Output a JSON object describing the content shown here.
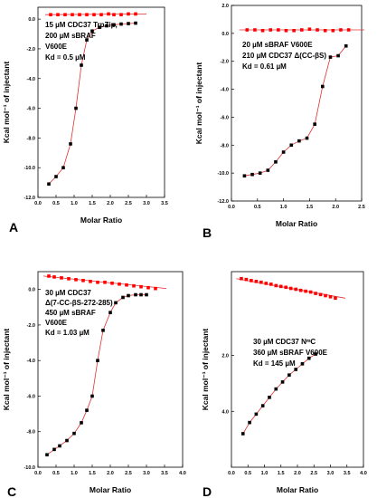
{
  "chart_data": [
    {
      "type": "scatter",
      "panel_label": "A",
      "xlabel": "Molar Ratio",
      "ylabel": "Kcal mol⁻¹ of injectant",
      "xlim": [
        0,
        3.5
      ],
      "ylim": [
        -12.0,
        0.8
      ],
      "x_ticks": [
        "0.0",
        "0.5",
        "1.0",
        "1.5",
        "2.0",
        "2.5",
        "3.0",
        "3.5"
      ],
      "y_ticks": [
        "0.0",
        "-2.0",
        "-4.0",
        "-6.0",
        "-8.0",
        "-10.0",
        "-12.0"
      ],
      "annotation": [
        "15 µM CDC37 TrpZip,",
        "200 µM sBRAF",
        "V600E",
        "Kd = 0.5 µM"
      ],
      "colors": {
        "control": "#ff0000",
        "titration": "#000000",
        "fit": "#e03030"
      },
      "series": [
        {
          "values_x": [
            0.3,
            0.5,
            0.7,
            0.9,
            1.05,
            1.2,
            1.35,
            1.5,
            1.7,
            1.9,
            2.1,
            2.3,
            2.5,
            2.7
          ],
          "values_y": [
            -11.1,
            -10.6,
            -10.0,
            -8.4,
            -6.0,
            -3.1,
            -1.4,
            -0.8,
            -0.55,
            -0.45,
            -0.38,
            -0.33,
            -0.3,
            -0.27
          ]
        },
        {
          "values_x": [
            0.35,
            0.55,
            0.75,
            0.95,
            1.15,
            1.35,
            1.55,
            1.75,
            1.95,
            2.1,
            2.3,
            2.5,
            2.7
          ],
          "values_y": [
            0.3,
            0.3,
            0.3,
            0.3,
            0.3,
            0.3,
            0.3,
            0.3,
            0.35,
            0.3,
            0.3,
            0.35,
            0.35
          ]
        }
      ]
    },
    {
      "type": "scatter",
      "panel_label": "B",
      "xlabel": "Molar Ratio",
      "ylabel": "Kcal mol⁻¹ of injectant",
      "xlim": [
        0,
        2.5
      ],
      "ylim": [
        -12.0,
        2.0
      ],
      "x_ticks": [
        "0.0",
        "0.5",
        "1.0",
        "1.5",
        "2.0",
        "2.5"
      ],
      "y_ticks": [
        "2.0",
        "0.0",
        "-2.0",
        "-4.0",
        "-6.0",
        "-8.0",
        "-10.0",
        "-12.0"
      ],
      "annotation": [
        "20 µM sBRAF V600E",
        "210 µM CDC37 Δ(CC-βS)",
        "Kd = 0.61 µM"
      ],
      "colors": {
        "control": "#ff0000",
        "titration": "#000000",
        "fit": "#e03030"
      },
      "series": [
        {
          "values_x": [
            0.25,
            0.4,
            0.55,
            0.7,
            0.85,
            1.0,
            1.15,
            1.3,
            1.45,
            1.6,
            1.75,
            1.9,
            2.05,
            2.2
          ],
          "values_y": [
            -10.2,
            -10.1,
            -10.0,
            -9.8,
            -9.2,
            -8.5,
            -8.0,
            -7.7,
            -7.5,
            -6.5,
            -3.8,
            -1.7,
            -1.6,
            -0.9
          ]
        },
        {
          "values_x": [
            0.3,
            0.45,
            0.6,
            0.75,
            0.9,
            1.05,
            1.2,
            1.35,
            1.5,
            1.65,
            1.8,
            1.95,
            2.1,
            2.25
          ],
          "values_y": [
            0.25,
            0.25,
            0.2,
            0.25,
            0.25,
            0.2,
            0.2,
            0.25,
            0.3,
            0.25,
            0.2,
            0.2,
            0.25,
            0.25
          ]
        }
      ]
    },
    {
      "type": "scatter",
      "panel_label": "C",
      "xlabel": "Molar Ratio",
      "ylabel": "Kcal mol⁻¹ of injectant",
      "xlim": [
        0,
        4.0
      ],
      "ylim": [
        -10.0,
        1.0
      ],
      "x_ticks": [
        "0.0",
        "0.5",
        "1.0",
        "1.5",
        "2.0",
        "2.5",
        "3.0",
        "3.5",
        "4.0"
      ],
      "y_ticks": [
        "0.0",
        "-2.0",
        "-4.0",
        "-6.0",
        "-8.0",
        "-10.0"
      ],
      "annotation": [
        "30 µM CDC37",
        "Δ(7-CC-βS-272-285)",
        "450 µM sBRAF",
        "V600E",
        "Kd = 1.03 µM"
      ],
      "colors": {
        "control": "#ff0000",
        "titration": "#000000",
        "fit": "#e03030"
      },
      "series": [
        {
          "values_x": [
            0.25,
            0.45,
            0.6,
            0.8,
            1.0,
            1.2,
            1.35,
            1.5,
            1.65,
            1.8,
            2.0,
            2.15,
            2.35,
            2.5,
            2.7,
            2.85,
            3.0
          ],
          "values_y": [
            -9.3,
            -9.0,
            -8.8,
            -8.5,
            -8.1,
            -7.5,
            -6.8,
            -6.0,
            -4.0,
            -2.3,
            -1.3,
            -0.75,
            -0.45,
            -0.35,
            -0.3,
            -0.3,
            -0.3
          ]
        },
        {
          "values_x": [
            0.3,
            0.45,
            0.65,
            0.85,
            1.05,
            1.25,
            1.45,
            1.65,
            1.85,
            2.05,
            2.25,
            2.45,
            2.65,
            2.85,
            3.05,
            3.25
          ],
          "values_y": [
            0.75,
            0.7,
            0.65,
            0.6,
            0.55,
            0.5,
            0.45,
            0.4,
            0.4,
            0.35,
            0.3,
            0.25,
            0.2,
            0.15,
            0.1,
            0.05
          ]
        }
      ]
    },
    {
      "type": "scatter",
      "panel_label": "D",
      "xlabel": "Molar Ratio",
      "ylabel": "Kcal mol⁻¹ of injectant",
      "xlim": [
        0,
        4.0
      ],
      "ylim": [
        -6.0,
        1.0
      ],
      "x_ticks": [
        "0.0",
        "0.5",
        "1.0",
        "1.5",
        "2.0",
        "2.5",
        "3.0",
        "3.5",
        "4.0"
      ],
      "y_ticks": [
        "2.0",
        "4.0"
      ],
      "annotation": [
        "30 µM CDC37 NᵐC",
        "360 µM sBRAF V600E",
        "Kd = 145 µM"
      ],
      "colors": {
        "control": "#ff0000",
        "titration": "#000000",
        "fit": "#e03030"
      },
      "series": [
        {
          "values_x": [
            0.35,
            0.55,
            0.75,
            0.95,
            1.15,
            1.35,
            1.55,
            1.75,
            1.95,
            2.15,
            2.35,
            2.55
          ],
          "values_y": [
            -4.8,
            -4.4,
            -4.1,
            -3.8,
            -3.5,
            -3.2,
            -2.95,
            -2.7,
            -2.5,
            -2.3,
            -2.1,
            -1.95
          ]
        },
        {
          "values_x": [
            0.3,
            0.45,
            0.6,
            0.75,
            0.9,
            1.05,
            1.2,
            1.35,
            1.5,
            1.65,
            1.8,
            1.95,
            2.1,
            2.25,
            2.4,
            2.55,
            2.7,
            2.85,
            3.0,
            3.15
          ],
          "values_y": [
            0.75,
            0.72,
            0.68,
            0.65,
            0.62,
            0.58,
            0.55,
            0.5,
            0.47,
            0.44,
            0.4,
            0.37,
            0.33,
            0.3,
            0.27,
            0.22,
            0.18,
            0.14,
            0.1,
            0.05
          ]
        }
      ]
    }
  ]
}
